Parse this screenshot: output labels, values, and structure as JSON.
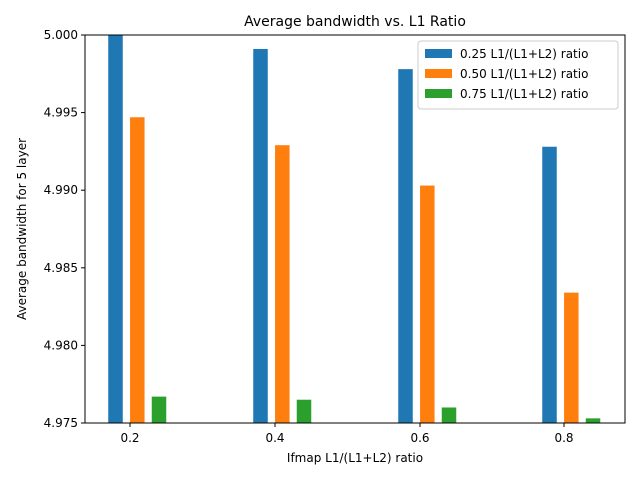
{
  "chart_data": {
    "type": "bar",
    "title": "Average bandwidth vs. L1 Ratio",
    "xlabel": "Ifmap L1/(L1+L2) ratio",
    "ylabel": "Average bandwidth for 5 layer",
    "categories": [
      "0.2",
      "0.4",
      "0.6",
      "0.8"
    ],
    "ylim": [
      4.975,
      5.0
    ],
    "yticks": [
      "4.975",
      "4.980",
      "4.985",
      "4.990",
      "4.995",
      "5.000"
    ],
    "legend_position": "top-right",
    "grid": false,
    "series": [
      {
        "name": "0.25 L1/(L1+L2) ratio",
        "color": "#1f77b4",
        "values": [
          5.0,
          4.9991,
          4.9978,
          4.9928
        ]
      },
      {
        "name": "0.50 L1/(L1+L2) ratio",
        "color": "#ff7f0e",
        "values": [
          4.9947,
          4.9929,
          4.9903,
          4.9834
        ]
      },
      {
        "name": "0.75 L1/(L1+L2) ratio",
        "color": "#2ca02c",
        "values": [
          4.9767,
          4.9765,
          4.976,
          4.9753
        ]
      }
    ]
  }
}
